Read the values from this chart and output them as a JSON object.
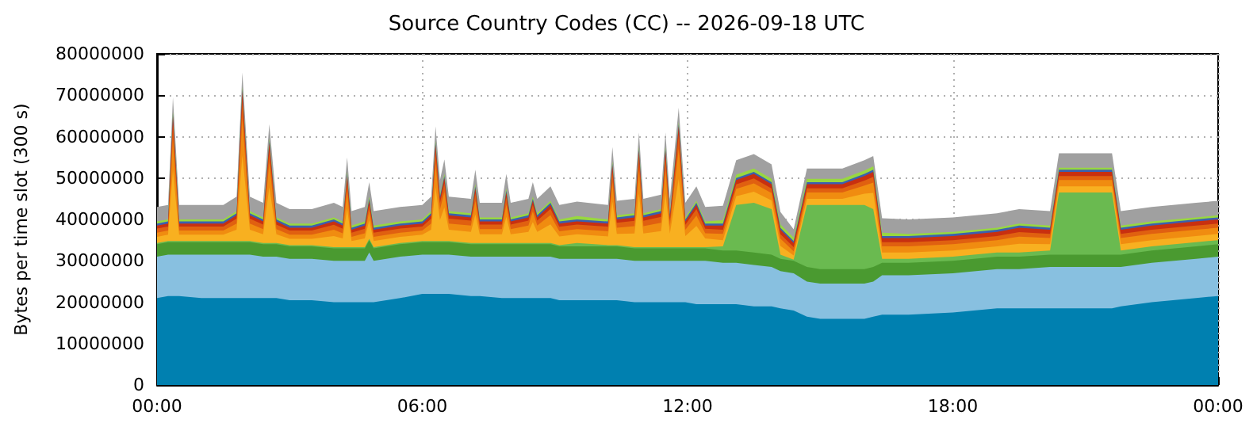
{
  "chart_data": {
    "type": "area",
    "stacked": true,
    "title": "Source Country Codes (CC) -- 2026-09-18 UTC",
    "ylabel": "Bytes per time slot (300 s)",
    "grid": true,
    "xlim": [
      0,
      24
    ],
    "xticks": [
      {
        "value": 0,
        "label": "00:00"
      },
      {
        "value": 6,
        "label": "06:00"
      },
      {
        "value": 12,
        "label": "12:00"
      },
      {
        "value": 18,
        "label": "18:00"
      },
      {
        "value": 24,
        "label": "00:00"
      }
    ],
    "ylim": [
      0,
      80000000
    ],
    "yticks": [
      0,
      10000000,
      20000000,
      30000000,
      40000000,
      50000000,
      60000000,
      70000000,
      80000000
    ],
    "x": [
      0,
      0.25,
      0.36,
      0.5,
      1,
      1.5,
      1.8,
      1.93,
      2.1,
      2.4,
      2.54,
      2.7,
      3,
      3.5,
      4,
      4.2,
      4.3,
      4.4,
      4.7,
      4.8,
      4.9,
      5.5,
      6,
      6.2,
      6.3,
      6.4,
      6.5,
      6.6,
      7.1,
      7.2,
      7.3,
      7.8,
      7.9,
      8.0,
      8.4,
      8.5,
      8.6,
      8.9,
      9.1,
      9.5,
      10.2,
      10.3,
      10.4,
      10.8,
      10.9,
      11.0,
      11.4,
      11.5,
      11.6,
      11.8,
      11.95,
      12.2,
      12.4,
      12.8,
      13.1,
      13.5,
      13.9,
      14.1,
      14.4,
      14.7,
      15.0,
      15.5,
      16.0,
      16.2,
      16.4,
      17,
      18,
      19,
      19.5,
      20.2,
      20.4,
      21.0,
      21.6,
      21.8,
      22.5,
      23.5,
      24
    ],
    "series": [
      {
        "color": "#0080b0",
        "values": [
          21000000,
          21500000,
          21500000,
          21500000,
          21000000,
          21000000,
          21000000,
          21000000,
          21000000,
          21000000,
          21000000,
          21000000,
          20500000,
          20500000,
          20000000,
          20000000,
          20000000,
          20000000,
          20000000,
          20000000,
          20000000,
          21000000,
          22000000,
          22000000,
          22000000,
          22000000,
          22000000,
          22000000,
          21500000,
          21500000,
          21500000,
          21000000,
          21000000,
          21000000,
          21000000,
          21000000,
          21000000,
          21000000,
          20500000,
          20500000,
          20500000,
          20500000,
          20500000,
          20000000,
          20000000,
          20000000,
          20000000,
          20000000,
          20000000,
          20000000,
          20000000,
          19500000,
          19500000,
          19500000,
          19500000,
          19000000,
          19000000,
          18500000,
          18000000,
          16500000,
          16000000,
          16000000,
          16000000,
          16500000,
          17000000,
          17000000,
          17500000,
          18500000,
          18500000,
          18500000,
          18500000,
          18500000,
          18500000,
          19000000,
          20000000,
          21000000,
          21500000
        ]
      },
      {
        "color": "#88c0e0",
        "values": [
          10000000,
          10000000,
          10000000,
          10000000,
          10500000,
          10500000,
          10500000,
          10500000,
          10500000,
          10000000,
          10000000,
          10000000,
          10000000,
          10000000,
          10000000,
          10000000,
          10000000,
          10000000,
          10000000,
          12000000,
          10000000,
          10000000,
          9500000,
          9500000,
          9500000,
          9500000,
          9500000,
          9500000,
          9500000,
          9500000,
          9500000,
          10000000,
          10000000,
          10000000,
          10000000,
          10000000,
          10000000,
          10000000,
          10000000,
          10000000,
          10000000,
          10000000,
          10000000,
          10000000,
          10000000,
          10000000,
          10000000,
          10000000,
          10000000,
          10000000,
          10000000,
          10500000,
          10500000,
          10000000,
          10000000,
          10000000,
          9500000,
          9000000,
          9000000,
          8500000,
          8500000,
          8500000,
          8500000,
          8500000,
          9500000,
          9500000,
          9500000,
          9500000,
          9500000,
          10000000,
          10000000,
          10000000,
          10000000,
          9500000,
          9500000,
          9500000,
          9500000
        ]
      },
      {
        "color": "#4a9a30",
        "values": [
          3000000,
          3000000,
          3000000,
          3000000,
          3000000,
          3000000,
          3000000,
          3000000,
          3000000,
          3000000,
          3000000,
          3000000,
          3000000,
          3000000,
          3000000,
          3000000,
          3000000,
          3000000,
          3000000,
          3000000,
          3000000,
          3000000,
          3000000,
          3000000,
          3000000,
          3000000,
          3000000,
          3000000,
          3000000,
          3000000,
          3000000,
          3000000,
          3000000,
          3000000,
          3000000,
          3000000,
          3000000,
          3000000,
          3000000,
          3000000,
          3000000,
          3000000,
          3000000,
          3000000,
          3000000,
          3000000,
          3000000,
          3000000,
          3000000,
          3000000,
          3000000,
          3000000,
          3000000,
          3000000,
          3000000,
          3000000,
          3000000,
          3000000,
          3000000,
          3500000,
          3500000,
          3500000,
          3500000,
          3500000,
          3000000,
          3000000,
          3000000,
          3000000,
          3000000,
          3000000,
          3000000,
          3000000,
          3000000,
          3000000,
          3000000,
          3000000,
          3000000
        ]
      },
      {
        "color": "#6aba50",
        "values": [
          300000,
          300000,
          300000,
          300000,
          300000,
          300000,
          300000,
          300000,
          300000,
          300000,
          300000,
          300000,
          300000,
          300000,
          300000,
          300000,
          300000,
          300000,
          300000,
          300000,
          300000,
          300000,
          300000,
          300000,
          300000,
          300000,
          300000,
          300000,
          300000,
          300000,
          300000,
          300000,
          300000,
          300000,
          300000,
          300000,
          300000,
          300000,
          300000,
          800000,
          300000,
          300000,
          300000,
          300000,
          300000,
          300000,
          300000,
          300000,
          300000,
          300000,
          300000,
          300000,
          300000,
          1000000,
          11000000,
          12000000,
          11000000,
          1000000,
          300000,
          15000000,
          15500000,
          15500000,
          15500000,
          14000000,
          1000000,
          1000000,
          1000000,
          1000000,
          1000000,
          1000000,
          15000000,
          15000000,
          15000000,
          1000000,
          1000000,
          1000000,
          1000000
        ]
      },
      {
        "color": "#f8b020",
        "values": [
          1500000,
          1500000,
          17100000,
          1500000,
          1500000,
          1500000,
          2700000,
          20700000,
          2700000,
          2100000,
          13500000,
          2100000,
          1500000,
          1500000,
          2700000,
          2100000,
          9300000,
          1500000,
          2100000,
          4500000,
          1500000,
          1500000,
          1500000,
          2700000,
          12900000,
          5100000,
          8100000,
          2700000,
          2700000,
          6900000,
          2100000,
          2100000,
          6300000,
          2100000,
          2700000,
          5100000,
          2700000,
          4500000,
          2100000,
          2100000,
          2100000,
          10500000,
          2700000,
          3300000,
          12900000,
          3300000,
          3900000,
          12900000,
          3300000,
          16500000,
          2700000,
          5100000,
          2100000,
          1500000,
          2100000,
          2700000,
          2100000,
          2100000,
          1000000,
          1500000,
          1500000,
          1500000,
          2700000,
          3900000,
          1500000,
          1500000,
          1500000,
          1500000,
          2100000,
          1500000,
          1500000,
          1500000,
          1500000,
          1500000,
          1500000,
          1500000,
          1500000
        ]
      },
      {
        "color": "#f08c10",
        "values": [
          1000000,
          1000000,
          7500000,
          1000000,
          1000000,
          1000000,
          1500000,
          9000000,
          1500000,
          1250000,
          6000000,
          1250000,
          1000000,
          1000000,
          1500000,
          1250000,
          4250000,
          1000000,
          1250000,
          2250000,
          1000000,
          1000000,
          1000000,
          1500000,
          5750000,
          2500000,
          3750000,
          1500000,
          1500000,
          3250000,
          1250000,
          1250000,
          3000000,
          1250000,
          1500000,
          2500000,
          1500000,
          2250000,
          1250000,
          1250000,
          1250000,
          4750000,
          1500000,
          1750000,
          5750000,
          1750000,
          2000000,
          5750000,
          1750000,
          7250000,
          1500000,
          2500000,
          1250000,
          1500000,
          1750000,
          2000000,
          1750000,
          1750000,
          1000000,
          1500000,
          1500000,
          1500000,
          2000000,
          2500000,
          1500000,
          1500000,
          1500000,
          1500000,
          1750000,
          1500000,
          1500000,
          1500000,
          1500000,
          1500000,
          1500000,
          1500000,
          1500000
        ]
      },
      {
        "color": "#e06010",
        "values": [
          1000000,
          1000000,
          3600000,
          1000000,
          1000000,
          1000000,
          1200000,
          4200000,
          1200000,
          1100000,
          3000000,
          1100000,
          1000000,
          1000000,
          1200000,
          1100000,
          2300000,
          1000000,
          1100000,
          1500000,
          1000000,
          1000000,
          1000000,
          1200000,
          2900000,
          1600000,
          2100000,
          1200000,
          1200000,
          1900000,
          1100000,
          1100000,
          1800000,
          1100000,
          1200000,
          1600000,
          1200000,
          1500000,
          1100000,
          1100000,
          1100000,
          2500000,
          1200000,
          1300000,
          2900000,
          1300000,
          1400000,
          2900000,
          1300000,
          3500000,
          1200000,
          1600000,
          1100000,
          1000000,
          1100000,
          1200000,
          1100000,
          1100000,
          1000000,
          1000000,
          1000000,
          1000000,
          1200000,
          1400000,
          1000000,
          1000000,
          1000000,
          1000000,
          1100000,
          1000000,
          1000000,
          1000000,
          1000000,
          1000000,
          1000000,
          1000000,
          1000000
        ]
      },
      {
        "color": "#c83010",
        "values": [
          700000,
          700000,
          2000000,
          700000,
          700000,
          700000,
          800000,
          2300000,
          800000,
          750000,
          1700000,
          750000,
          700000,
          700000,
          800000,
          750000,
          1350000,
          700000,
          750000,
          950000,
          700000,
          700000,
          700000,
          800000,
          1650000,
          1000000,
          1250000,
          800000,
          800000,
          1150000,
          750000,
          750000,
          1100000,
          750000,
          800000,
          1000000,
          800000,
          950000,
          750000,
          750000,
          750000,
          1450000,
          800000,
          850000,
          1650000,
          850000,
          900000,
          1650000,
          850000,
          1950000,
          800000,
          1000000,
          750000,
          1000000,
          1050000,
          1100000,
          1050000,
          1050000,
          1000000,
          1000000,
          1000000,
          1000000,
          1100000,
          1200000,
          1000000,
          1000000,
          1000000,
          1000000,
          1050000,
          1000000,
          1000000,
          1000000,
          1000000,
          1000000,
          1000000,
          1000000,
          1000000
        ]
      },
      {
        "color": "#3a60b0",
        "values": [
          500000,
          500000,
          500000,
          500000,
          500000,
          500000,
          500000,
          500000,
          500000,
          500000,
          500000,
          500000,
          500000,
          500000,
          500000,
          500000,
          500000,
          500000,
          500000,
          500000,
          500000,
          500000,
          500000,
          500000,
          500000,
          500000,
          500000,
          500000,
          500000,
          500000,
          500000,
          500000,
          500000,
          500000,
          500000,
          500000,
          500000,
          500000,
          500000,
          500000,
          500000,
          500000,
          500000,
          500000,
          500000,
          500000,
          500000,
          500000,
          500000,
          500000,
          500000,
          500000,
          500000,
          500000,
          500000,
          500000,
          500000,
          500000,
          500000,
          500000,
          500000,
          500000,
          500000,
          500000,
          500000,
          500000,
          500000,
          500000,
          500000,
          500000,
          500000,
          500000,
          500000,
          500000,
          500000,
          500000,
          500000
        ]
      },
      {
        "color": "#98d840",
        "values": [
          500000,
          500000,
          500000,
          500000,
          500000,
          500000,
          500000,
          500000,
          500000,
          500000,
          500000,
          500000,
          500000,
          500000,
          500000,
          500000,
          500000,
          500000,
          500000,
          500000,
          500000,
          500000,
          500000,
          500000,
          500000,
          500000,
          500000,
          500000,
          500000,
          500000,
          500000,
          500000,
          500000,
          500000,
          500000,
          500000,
          500000,
          500000,
          500000,
          800000,
          500000,
          500000,
          500000,
          500000,
          500000,
          500000,
          500000,
          500000,
          500000,
          500000,
          500000,
          500000,
          500000,
          800000,
          800000,
          800000,
          800000,
          800000,
          800000,
          800000,
          800000,
          800000,
          800000,
          800000,
          800000,
          500000,
          500000,
          500000,
          500000,
          500000,
          500000,
          500000,
          500000,
          500000,
          500000,
          500000,
          500000
        ]
      },
      {
        "color": "#a0a0a0",
        "values": [
          3500000,
          3500000,
          3500000,
          3500000,
          3500000,
          3500000,
          3500000,
          3500000,
          3500000,
          3500000,
          3500000,
          3500000,
          3500000,
          3500000,
          3500000,
          3500000,
          3500000,
          3500000,
          3500000,
          3500000,
          3500000,
          3500000,
          3500000,
          3500000,
          3500000,
          3500000,
          3500000,
          3500000,
          3500000,
          3500000,
          3500000,
          3500000,
          3500000,
          3500000,
          3500000,
          3500000,
          3500000,
          3500000,
          3500000,
          3500000,
          3500000,
          3500000,
          3500000,
          3500000,
          3500000,
          3500000,
          3500000,
          3500000,
          3500000,
          3500000,
          3500000,
          3500000,
          3500000,
          3500000,
          3500000,
          3500000,
          3500000,
          3000000,
          2000000,
          2500000,
          2500000,
          2500000,
          2500000,
          2500000,
          3500000,
          3500000,
          3500000,
          3500000,
          3500000,
          3500000,
          3500000,
          3500000,
          3500000,
          3500000,
          3500000,
          3500000,
          3500000
        ]
      }
    ]
  }
}
